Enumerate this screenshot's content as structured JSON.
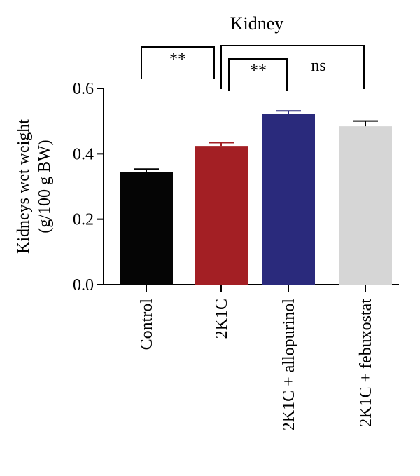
{
  "chart_data": {
    "type": "bar",
    "title": "Kidney",
    "xlabel": "",
    "ylabel_lines": [
      "Kidneys wet weight",
      "(g/100 g BW)"
    ],
    "categories": [
      "Control",
      "2K1C",
      "2K1C + allopurinol",
      "2K1C + febuxostat"
    ],
    "values": [
      0.343,
      0.424,
      0.522,
      0.484
    ],
    "errors": [
      0.01,
      0.01,
      0.009,
      0.016
    ],
    "colors": [
      "#050505",
      "#a31f24",
      "#2a2a7c",
      "#d6d6d6"
    ],
    "ylim": [
      0,
      0.6
    ],
    "yticks": [
      0.0,
      0.2,
      0.4,
      0.6
    ],
    "ytick_labels": [
      "0.0",
      "0.2",
      "0.4",
      "0.6"
    ],
    "grid": false,
    "significance": [
      {
        "from": 0,
        "to": 1,
        "label": "**"
      },
      {
        "from": 1,
        "to": 2,
        "label": "**"
      },
      {
        "from": 1,
        "to": 3,
        "label": "ns"
      }
    ]
  }
}
